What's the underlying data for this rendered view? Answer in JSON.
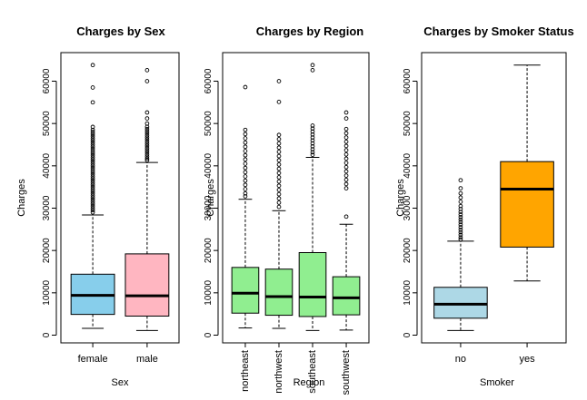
{
  "chart_data": [
    {
      "type": "box",
      "title": "Charges by Sex",
      "xlabel": "Sex",
      "ylabel": "Charges",
      "ylim": [
        0,
        65000
      ],
      "yticks": [
        0,
        10000,
        20000,
        30000,
        40000,
        50000,
        60000
      ],
      "ytick_labels": [
        "0",
        "10000",
        "20000",
        "30000",
        "40000",
        "50000",
        "60000"
      ],
      "categories": [
        "female",
        "male"
      ],
      "colors": [
        "#87CEEB",
        "#FFB6C1"
      ],
      "boxes": [
        {
          "min": 1600,
          "q1": 4900,
          "median": 9400,
          "q3": 14400,
          "max": 28400,
          "outliers": [
            63800,
            58500,
            55000,
            49200,
            48500,
            48000,
            47500,
            47000,
            46500,
            46000,
            45500,
            45000,
            44500,
            44000,
            43500,
            43000,
            42500,
            42000,
            41500,
            41000,
            40500,
            40000,
            39500,
            39000,
            38500,
            38000,
            37500,
            37000,
            36500,
            36000,
            35500,
            35000,
            34500,
            34000,
            33500,
            33000,
            32500,
            32000,
            31500,
            31000,
            30500,
            30000,
            29500,
            29000
          ]
        },
        {
          "min": 1100,
          "q1": 4500,
          "median": 9300,
          "q3": 19200,
          "max": 40800,
          "outliers": [
            62600,
            60000,
            52600,
            51200,
            50000,
            49200,
            48700,
            48200,
            47700,
            47200,
            46700,
            46200,
            45700,
            45200,
            44700,
            44200,
            43700,
            43200,
            42700,
            42200,
            41700,
            41300
          ]
        }
      ]
    },
    {
      "type": "box",
      "title": "Charges by Region",
      "xlabel": "Region",
      "ylabel": "Charges",
      "ylim": [
        0,
        65000
      ],
      "yticks": [
        0,
        10000,
        20000,
        30000,
        40000,
        50000,
        60000
      ],
      "ytick_labels": [
        "0",
        "10000",
        "20000",
        "30000",
        "40000",
        "50000",
        "60000"
      ],
      "categories": [
        "northeast",
        "northwest",
        "southeast",
        "southwest"
      ],
      "colors": [
        "#90EE90",
        "#90EE90",
        "#90EE90",
        "#90EE90"
      ],
      "boxes": [
        {
          "min": 1700,
          "q1": 5200,
          "median": 9900,
          "q3": 16000,
          "max": 32100,
          "outliers": [
            58600,
            48500,
            47500,
            46500,
            45500,
            44500,
            43500,
            42500,
            41500,
            40500,
            39500,
            38500,
            37500,
            36500,
            35500,
            34500,
            33500,
            32800
          ]
        },
        {
          "min": 1600,
          "q1": 4700,
          "median": 9100,
          "q3": 15600,
          "max": 29400,
          "outliers": [
            60000,
            55100,
            47300,
            46300,
            45300,
            44300,
            43300,
            42300,
            41300,
            40300,
            39300,
            38300,
            37300,
            36300,
            35300,
            34300,
            33300,
            32300,
            31300,
            30300
          ]
        },
        {
          "min": 1100,
          "q1": 4400,
          "median": 9000,
          "q3": 19500,
          "max": 42000,
          "outliers": [
            63800,
            62600,
            49500,
            48800,
            48100,
            47400,
            46700,
            46000,
            45300,
            44600,
            43900,
            43200,
            42600
          ]
        },
        {
          "min": 1200,
          "q1": 4800,
          "median": 8800,
          "q3": 13800,
          "max": 26200,
          "outliers": [
            52600,
            51200,
            48700,
            47700,
            46700,
            45700,
            44700,
            43700,
            42700,
            41700,
            40700,
            39700,
            38700,
            37700,
            36700,
            35700,
            34700,
            28000
          ]
        }
      ]
    },
    {
      "type": "box",
      "title": "Charges by Smoker Status",
      "xlabel": "Smoker",
      "ylabel": "Charges",
      "ylim": [
        0,
        65000
      ],
      "yticks": [
        0,
        10000,
        20000,
        30000,
        40000,
        50000,
        60000
      ],
      "ytick_labels": [
        "0",
        "10000",
        "20000",
        "30000",
        "40000",
        "50000",
        "60000"
      ],
      "categories": [
        "no",
        "yes"
      ],
      "colors": [
        "#ADD8E6",
        "#FFA500"
      ],
      "boxes": [
        {
          "min": 1100,
          "q1": 4000,
          "median": 7300,
          "q3": 11300,
          "max": 22200,
          "outliers": [
            36600,
            34700,
            33500,
            32500,
            31500,
            30500,
            29800,
            29100,
            28500,
            27900,
            27300,
            26700,
            26100,
            25500,
            24900,
            24300,
            23700,
            23100,
            22600
          ]
        },
        {
          "min": 12800,
          "q1": 20800,
          "median": 34500,
          "q3": 41000,
          "max": 63800,
          "outliers": []
        }
      ]
    }
  ]
}
